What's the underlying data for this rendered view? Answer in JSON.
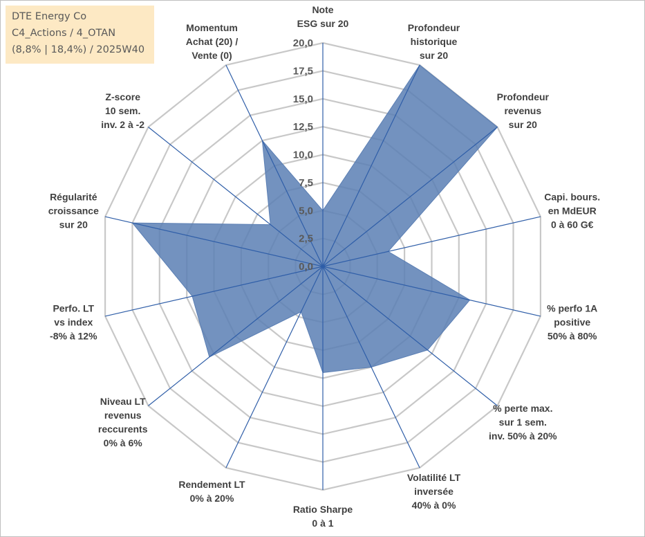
{
  "info_box": {
    "line1": "DTE Energy Co",
    "line2": "C4_Actions / 4_OTAN",
    "line3": "(8,8% | 18,4%) / 2025W40"
  },
  "colors": {
    "fill": "#5b7fb4",
    "axis": "#2f5ea8",
    "grid": "#c8c8c8",
    "text": "#404040"
  },
  "chart_data": {
    "type": "radar",
    "title": "",
    "rmin": 0,
    "rmax": 20,
    "ticks": [
      "0,0",
      "2,5",
      "5,0",
      "7,5",
      "10,0",
      "12,5",
      "15,0",
      "17,5",
      "20,0"
    ],
    "axes": [
      {
        "label": [
          "Note",
          "ESG sur 20"
        ],
        "value": 5.0
      },
      {
        "label": [
          "Profondeur",
          "historique",
          "sur 20"
        ],
        "value": 20.0
      },
      {
        "label": [
          "Profondeur",
          "revenus",
          "sur 20"
        ],
        "value": 20.0
      },
      {
        "label": [
          "Capi. bours.",
          "en MdEUR",
          "0 à 60 G€"
        ],
        "value": 6.0
      },
      {
        "label": [
          "% perfo 1A",
          "positive",
          "50% à 80%"
        ],
        "value": 13.5
      },
      {
        "label": [
          "% perte max.",
          "sur 1 sem.",
          "inv. 50% à 20%"
        ],
        "value": 12.0
      },
      {
        "label": [
          "Volatilité LT",
          "inversée",
          "40% à 0%"
        ],
        "value": 10.0
      },
      {
        "label": [
          "Ratio Sharpe",
          "0 à 1"
        ],
        "value": 9.5
      },
      {
        "label": [
          "Rendement LT",
          "0% à 20%"
        ],
        "value": 4.5
      },
      {
        "label": [
          "Niveau LT",
          "revenus",
          "reccurents",
          "0% à 6%"
        ],
        "value": 13.0
      },
      {
        "label": [
          "Perfo. LT",
          "vs index",
          "-8% à 12%"
        ],
        "value": 12.0
      },
      {
        "label": [
          "Régularité",
          "croissance",
          "sur 20"
        ],
        "value": 17.5
      },
      {
        "label": [
          "Z-score",
          "10 sem.",
          "inv. 2 à -2"
        ],
        "value": 6.0
      },
      {
        "label": [
          "Momentum",
          "Achat (20) /",
          "Vente (0)"
        ],
        "value": 12.5
      }
    ]
  }
}
